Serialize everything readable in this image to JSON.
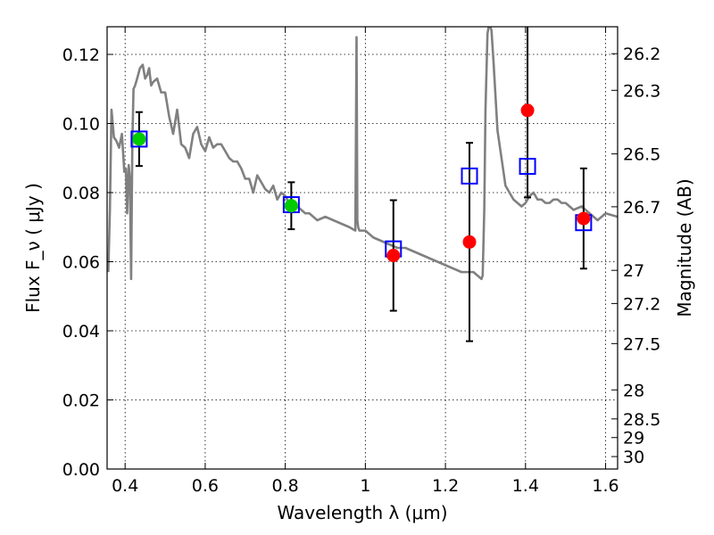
{
  "chart_data": {
    "type": "scatter",
    "title": "",
    "xlabel": "Wavelength  λ (μm)",
    "ylabel": "Flux  F_ν  ( μJy )",
    "ylabel_right": "Magnitude (AB)",
    "xlim": [
      0.355,
      1.63
    ],
    "ylim": [
      0.0,
      0.128
    ],
    "grid": true,
    "x_ticks": [
      0.4,
      0.6,
      0.8,
      1.0,
      1.2,
      1.4,
      1.6
    ],
    "x_tick_labels": [
      "0.4",
      "0.6",
      "0.8",
      "1",
      "1.2",
      "1.4",
      "1.6"
    ],
    "y_ticks": [
      0.0,
      0.02,
      0.04,
      0.06,
      0.08,
      0.1,
      0.12
    ],
    "y_tick_labels": [
      "0.00",
      "0.02",
      "0.04",
      "0.06",
      "0.08",
      "0.10",
      "0.12"
    ],
    "right_ticks": [
      {
        "label": "26.2",
        "flux": 0.1202
      },
      {
        "label": "26.3",
        "flux": 0.1096
      },
      {
        "label": "26.5",
        "flux": 0.0912
      },
      {
        "label": "26.7",
        "flux": 0.0759
      },
      {
        "label": "27",
        "flux": 0.0575
      },
      {
        "label": "27.2",
        "flux": 0.0479
      },
      {
        "label": "27.5",
        "flux": 0.0363
      },
      {
        "label": "28",
        "flux": 0.0229
      },
      {
        "label": "28.5",
        "flux": 0.0145
      },
      {
        "label": "29",
        "flux": 0.0091
      },
      {
        "label": "30",
        "flux": 0.0036
      }
    ],
    "series": [
      {
        "kind": "line",
        "color": "#808080",
        "x": [
          0.358,
          0.362,
          0.366,
          0.372,
          0.378,
          0.385,
          0.392,
          0.398,
          0.402,
          0.405,
          0.409,
          0.412,
          0.415,
          0.418,
          0.421,
          0.425,
          0.43,
          0.437,
          0.444,
          0.45,
          0.455,
          0.46,
          0.465,
          0.47,
          0.48,
          0.49,
          0.5,
          0.51,
          0.52,
          0.53,
          0.54,
          0.55,
          0.56,
          0.57,
          0.58,
          0.59,
          0.6,
          0.61,
          0.62,
          0.63,
          0.64,
          0.65,
          0.66,
          0.67,
          0.68,
          0.69,
          0.7,
          0.71,
          0.72,
          0.73,
          0.74,
          0.75,
          0.76,
          0.77,
          0.78,
          0.79,
          0.8,
          0.81,
          0.82,
          0.83,
          0.84,
          0.85,
          0.86,
          0.87,
          0.88,
          0.9,
          0.92,
          0.94,
          0.96,
          0.975,
          0.978,
          0.98,
          0.982,
          0.985,
          1.0,
          1.02,
          1.04,
          1.06,
          1.08,
          1.1,
          1.12,
          1.14,
          1.16,
          1.18,
          1.2,
          1.22,
          1.24,
          1.26,
          1.27,
          1.28,
          1.29,
          1.293,
          1.297,
          1.3,
          1.305,
          1.308,
          1.312,
          1.315,
          1.32,
          1.33,
          1.34,
          1.35,
          1.36,
          1.37,
          1.38,
          1.39,
          1.4,
          1.41,
          1.42,
          1.43,
          1.44,
          1.45,
          1.46,
          1.47,
          1.48,
          1.49,
          1.5,
          1.52,
          1.54,
          1.56,
          1.58,
          1.6,
          1.63
        ],
        "y": [
          0.057,
          0.075,
          0.104,
          0.096,
          0.095,
          0.093,
          0.097,
          0.086,
          0.087,
          0.074,
          0.088,
          0.084,
          0.055,
          0.094,
          0.11,
          0.111,
          0.113,
          0.116,
          0.117,
          0.113,
          0.114,
          0.116,
          0.111,
          0.112,
          0.113,
          0.109,
          0.109,
          0.102,
          0.097,
          0.104,
          0.094,
          0.093,
          0.09,
          0.097,
          0.099,
          0.094,
          0.092,
          0.096,
          0.093,
          0.094,
          0.094,
          0.092,
          0.09,
          0.089,
          0.089,
          0.087,
          0.084,
          0.084,
          0.08,
          0.085,
          0.083,
          0.081,
          0.08,
          0.082,
          0.078,
          0.08,
          0.079,
          0.077,
          0.076,
          0.076,
          0.075,
          0.074,
          0.074,
          0.073,
          0.072,
          0.073,
          0.072,
          0.071,
          0.07,
          0.069,
          0.125,
          0.072,
          0.07,
          0.069,
          0.069,
          0.067,
          0.066,
          0.065,
          0.064,
          0.064,
          0.063,
          0.062,
          0.061,
          0.06,
          0.059,
          0.058,
          0.057,
          0.057,
          0.057,
          0.056,
          0.055,
          0.056,
          0.075,
          0.104,
          0.126,
          0.128,
          0.128,
          0.127,
          0.118,
          0.098,
          0.09,
          0.082,
          0.08,
          0.078,
          0.077,
          0.076,
          0.077,
          0.079,
          0.08,
          0.078,
          0.078,
          0.077,
          0.077,
          0.078,
          0.078,
          0.077,
          0.077,
          0.075,
          0.076,
          0.074,
          0.072,
          0.074,
          0.073
        ]
      },
      {
        "kind": "squares",
        "color": "#0000ff",
        "x": [
          0.435,
          0.815,
          1.07,
          1.26,
          1.405,
          1.545
        ],
        "y": [
          0.0955,
          0.0765,
          0.0637,
          0.0848,
          0.0876,
          0.0713
        ]
      },
      {
        "kind": "points_errorbars",
        "color": "#00cc00",
        "x": [
          0.435,
          0.815
        ],
        "y": [
          0.0955,
          0.0762
        ],
        "yerr": [
          0.0078,
          0.0068
        ]
      },
      {
        "kind": "points_errorbars",
        "color": "#ff0000",
        "x": [
          1.07,
          1.26,
          1.405,
          1.545
        ],
        "y": [
          0.0618,
          0.0657,
          0.1038,
          0.0725
        ],
        "yerr": [
          0.016,
          0.0287,
          0.0252,
          0.0145
        ]
      }
    ]
  }
}
